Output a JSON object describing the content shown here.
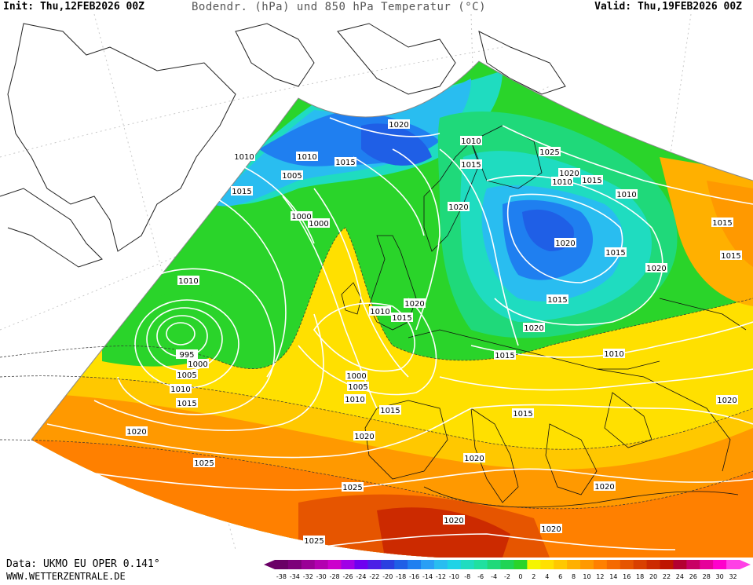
{
  "header": {
    "init": "Init: Thu,12FEB2026 00Z",
    "title": "Bodendr. (hPa) und 850 hPa Temperatur (°C)",
    "valid": "Valid: Thu,19FEB2026 00Z"
  },
  "footer": {
    "data": "Data: UKMO EU OPER 0.141°",
    "site": "WWW.WETTERZENTRALE.DE"
  },
  "legend": {
    "ticks": [
      "-38",
      "-34",
      "-32",
      "-30",
      "-28",
      "-26",
      "-24",
      "-22",
      "-20",
      "-18",
      "-16",
      "-14",
      "-12",
      "-10",
      "-8",
      "-6",
      "-4",
      "-2",
      "0",
      "2",
      "4",
      "6",
      "8",
      "10",
      "12",
      "14",
      "16",
      "18",
      "20",
      "22",
      "24",
      "26",
      "28",
      "30",
      "32"
    ],
    "colors": [
      "#6a0066",
      "#7d007a",
      "#9a0096",
      "#b300b0",
      "#cc00cc",
      "#a000e6",
      "#6e00f0",
      "#4b1fe6",
      "#2a3fe0",
      "#1f5fe6",
      "#1f7ff0",
      "#2a9ff5",
      "#29bdf0",
      "#1fd3e6",
      "#1fdcc0",
      "#1fe0a0",
      "#1fd97a",
      "#1fd455",
      "#2ad42a",
      "#f5f500",
      "#ffe000",
      "#ffc800",
      "#ffb000",
      "#ff9900",
      "#ff8000",
      "#f56a00",
      "#e65500",
      "#d94000",
      "#cc2a00",
      "#bf1500",
      "#b30030",
      "#c80064",
      "#e6009a",
      "#ff00cc",
      "#ff40e6"
    ]
  },
  "isobar_labels": [
    "1020",
    "1010",
    "1015",
    "1010",
    "1005",
    "1015",
    "1000",
    "1000",
    "1020",
    "1010",
    "1015",
    "1025",
    "1020",
    "1015",
    "1010",
    "1010",
    "1010",
    "1015",
    "1020",
    "1015",
    "1020",
    "1010",
    "1015",
    "1020",
    "1015",
    "1010",
    "1015",
    "1005",
    "1000",
    "1010",
    "995",
    "1000",
    "1005",
    "1010",
    "1015",
    "1000",
    "1005",
    "1010",
    "1015",
    "1015",
    "1015",
    "1020",
    "1020",
    "1020",
    "1025",
    "1025",
    "1020",
    "1020",
    "1020",
    "1020",
    "1025",
    "1020",
    "1020"
  ]
}
